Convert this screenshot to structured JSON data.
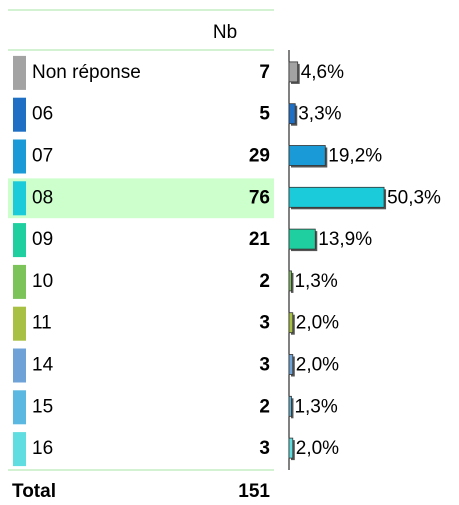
{
  "chart_data": {
    "type": "bar",
    "header": "Nb",
    "categories": [
      "Non réponse",
      "06",
      "07",
      "08",
      "09",
      "10",
      "11",
      "14",
      "15",
      "16"
    ],
    "counts": [
      7,
      5,
      29,
      76,
      21,
      2,
      3,
      3,
      2,
      3
    ],
    "values": [
      4.6,
      3.3,
      19.2,
      50.3,
      13.9,
      1.3,
      2.0,
      2.0,
      1.3,
      2.0
    ],
    "value_labels": [
      "4,6%",
      "3,3%",
      "19,2%",
      "50,3%",
      "13,9%",
      "1,3%",
      "2,0%",
      "2,0%",
      "1,3%",
      "2,0%"
    ],
    "colors": [
      "#a3a3a3",
      "#1f6fc5",
      "#1a9ad6",
      "#1ccbd9",
      "#1fcf9f",
      "#7cc35a",
      "#a8c044",
      "#6fa3d8",
      "#5bb8e0",
      "#60dde0"
    ],
    "highlight": {
      "category": "08",
      "color": "#ccffcc"
    },
    "total_label": "Total",
    "total": 151
  }
}
